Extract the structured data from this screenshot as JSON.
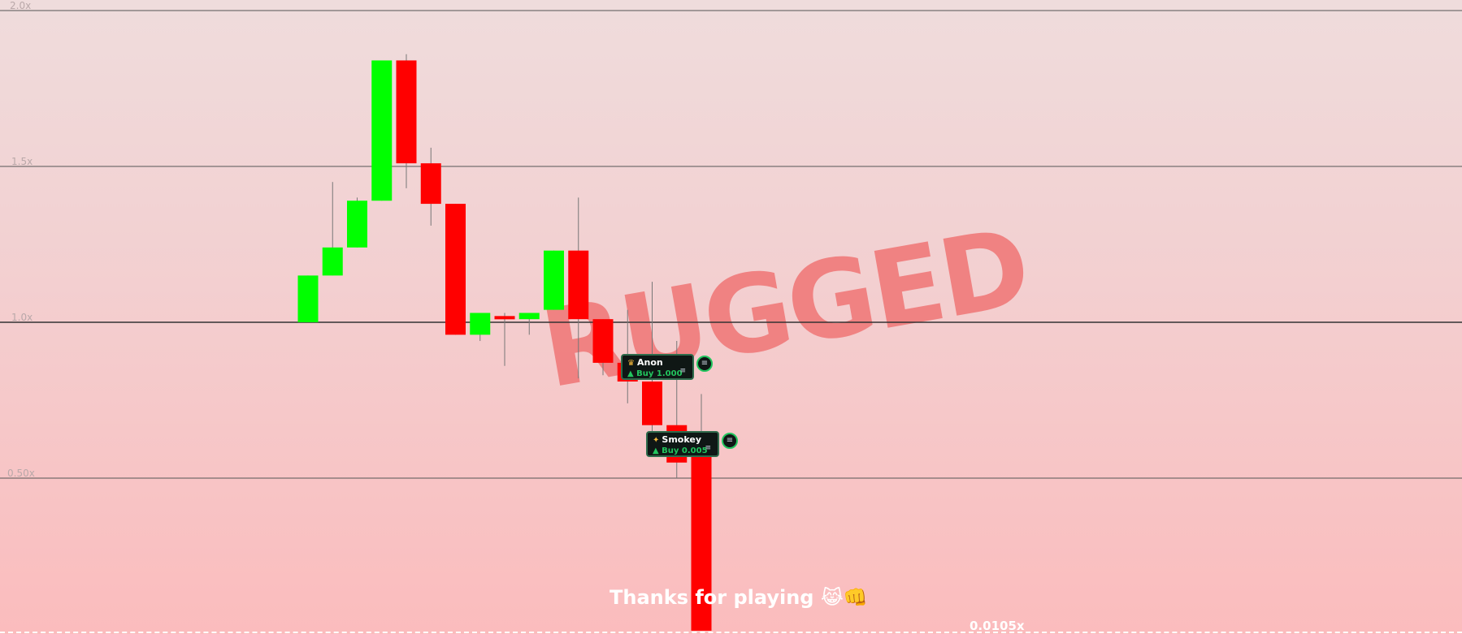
{
  "axis": {
    "labels": [
      "2.0x",
      "1.5x",
      "1.0x",
      "0.50x"
    ],
    "levels": [
      2.0,
      1.5,
      1.0,
      0.5
    ]
  },
  "status": {
    "banner": "RUGGED",
    "footer_message": "Thanks for playing",
    "footer_emoji": "😹👊",
    "current_multiplier": "0.0105x"
  },
  "trades": [
    {
      "name": "Anon",
      "action": "Buy 1.000",
      "icon": "crown-icon"
    },
    {
      "name": "Smokey",
      "action": "Buy 0.005",
      "icon": "bee-icon"
    }
  ],
  "colors": {
    "up": "#00ff00",
    "down": "#ff0000",
    "banner": "#f07a7a",
    "trade_border": "#2f6b4c",
    "trade_text": "#22c55e"
  },
  "chart_data": {
    "type": "candlestick",
    "y_unit": "x",
    "ylim": [
      0,
      2.0
    ],
    "candles": [
      {
        "open": 1.0,
        "close": 1.15,
        "high": 1.15,
        "low": 1.0
      },
      {
        "open": 1.15,
        "close": 1.24,
        "high": 1.45,
        "low": 1.15
      },
      {
        "open": 1.24,
        "close": 1.39,
        "high": 1.4,
        "low": 1.24
      },
      {
        "open": 1.39,
        "close": 1.84,
        "high": 1.84,
        "low": 1.39
      },
      {
        "open": 1.84,
        "close": 1.51,
        "high": 1.86,
        "low": 1.43
      },
      {
        "open": 1.51,
        "close": 1.38,
        "high": 1.56,
        "low": 1.31
      },
      {
        "open": 1.38,
        "close": 0.96,
        "high": 1.38,
        "low": 0.96
      },
      {
        "open": 0.96,
        "close": 1.03,
        "high": 1.03,
        "low": 0.94
      },
      {
        "open": 1.02,
        "close": 1.01,
        "high": 1.03,
        "low": 0.86
      },
      {
        "open": 1.01,
        "close": 1.03,
        "high": 1.03,
        "low": 0.96
      },
      {
        "open": 1.04,
        "close": 1.23,
        "high": 1.23,
        "low": 1.04
      },
      {
        "open": 1.23,
        "close": 1.01,
        "high": 1.4,
        "low": 0.82
      },
      {
        "open": 1.01,
        "close": 0.87,
        "high": 1.01,
        "low": 0.83
      },
      {
        "open": 0.87,
        "close": 0.81,
        "high": 1.04,
        "low": 0.74
      },
      {
        "open": 0.81,
        "close": 0.67,
        "high": 1.13,
        "low": 0.64
      },
      {
        "open": 0.67,
        "close": 0.55,
        "high": 0.94,
        "low": 0.5
      },
      {
        "open": 0.62,
        "close": 0.0105,
        "high": 0.77,
        "low": 0.0105
      }
    ]
  }
}
